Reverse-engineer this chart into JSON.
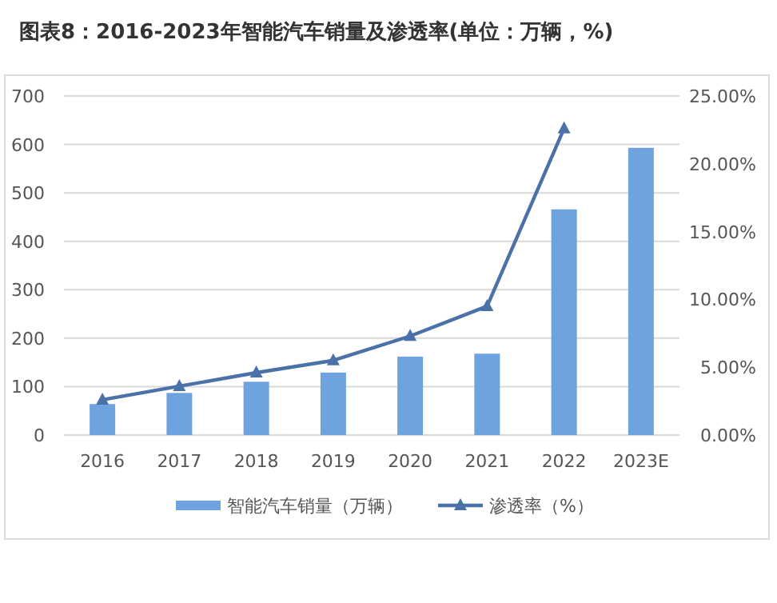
{
  "chart_data": {
    "type": "bar",
    "title": "图表8：2016-2023年智能汽车销量及渗透率(单位：万辆，%)",
    "categories": [
      "2016",
      "2017",
      "2018",
      "2019",
      "2020",
      "2021",
      "2022",
      "2023E"
    ],
    "series": [
      {
        "name": "智能汽车销量（万辆）",
        "color": "#6fa3e0",
        "values": [
          64,
          87,
          110,
          129,
          162,
          168,
          466,
          593
        ]
      },
      {
        "name": "渗透率（%）",
        "color": "#4a72a8",
        "type": "line",
        "axis": "y2",
        "values": [
          2.6,
          3.6,
          4.6,
          5.5,
          7.3,
          9.5,
          22.6,
          null
        ]
      }
    ],
    "ylim": [
      0,
      700
    ],
    "yticks": [
      0,
      100,
      200,
      300,
      400,
      500,
      600,
      700
    ],
    "y2lim": [
      0,
      25
    ],
    "y2ticks": [
      {
        "value": 0,
        "label": "0.00%"
      },
      {
        "value": 5,
        "label": "5.00%"
      },
      {
        "value": 10,
        "label": "10.00%"
      },
      {
        "value": 15,
        "label": "15.00%"
      },
      {
        "value": 20,
        "label": "20.00%"
      },
      {
        "value": 25,
        "label": "25.00%"
      }
    ],
    "grid": "y",
    "legend": "bottom",
    "marker": "triangle"
  }
}
